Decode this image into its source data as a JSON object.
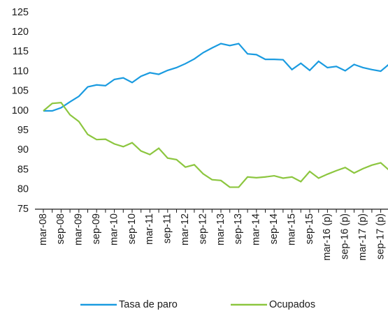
{
  "chart_data": {
    "type": "line",
    "categories": [
      "mar-08",
      null,
      "sep-08",
      null,
      "mar-09",
      null,
      "sep-09",
      null,
      "mar-10",
      null,
      "sep-10",
      null,
      "mar-11",
      null,
      "sep-11",
      null,
      "mar-12",
      null,
      "sep-12",
      null,
      "mar-13",
      null,
      "sep-13",
      null,
      "mar-14",
      null,
      "sep-14",
      null,
      "mar-15",
      null,
      "sep-15",
      null,
      "mar-16 (p)",
      null,
      "sep-16 (p)",
      null,
      "mar-17 (p)",
      null,
      "sep-17 (p)",
      null
    ],
    "series": [
      {
        "name": "Tasa de paro",
        "color": "#1a9be0",
        "values": [
          100,
          100,
          100.8,
          102.3,
          103.7,
          106.1,
          106.6,
          106.4,
          108.0,
          108.4,
          107.2,
          108.8,
          109.7,
          109.3,
          110.3,
          111.0,
          112.0,
          113.2,
          114.8,
          116.0,
          117.1,
          116.6,
          117.1,
          114.5,
          114.3,
          113.1,
          113.1,
          113.0,
          110.5,
          112.1,
          110.3,
          112.6,
          111.0,
          111.3,
          110.2,
          111.8,
          111.0,
          110.5,
          110.1,
          112.0
        ]
      },
      {
        "name": "Ocupados",
        "color": "#8cc63f",
        "values": [
          100,
          101.9,
          102.1,
          99.0,
          97.3,
          94.0,
          92.7,
          92.8,
          91.6,
          90.9,
          91.9,
          89.8,
          88.9,
          90.5,
          88.0,
          87.6,
          85.7,
          86.3,
          84.0,
          82.5,
          82.3,
          80.6,
          80.6,
          83.2,
          83.0,
          83.2,
          83.5,
          82.9,
          83.2,
          82.0,
          84.6,
          82.9,
          83.9,
          84.8,
          85.6,
          84.2,
          85.3,
          86.2,
          86.8,
          84.8
        ]
      }
    ],
    "ylim": [
      75,
      125
    ],
    "yticks": [
      75,
      80,
      85,
      90,
      95,
      100,
      105,
      110,
      115,
      120,
      125
    ],
    "grid": false
  }
}
